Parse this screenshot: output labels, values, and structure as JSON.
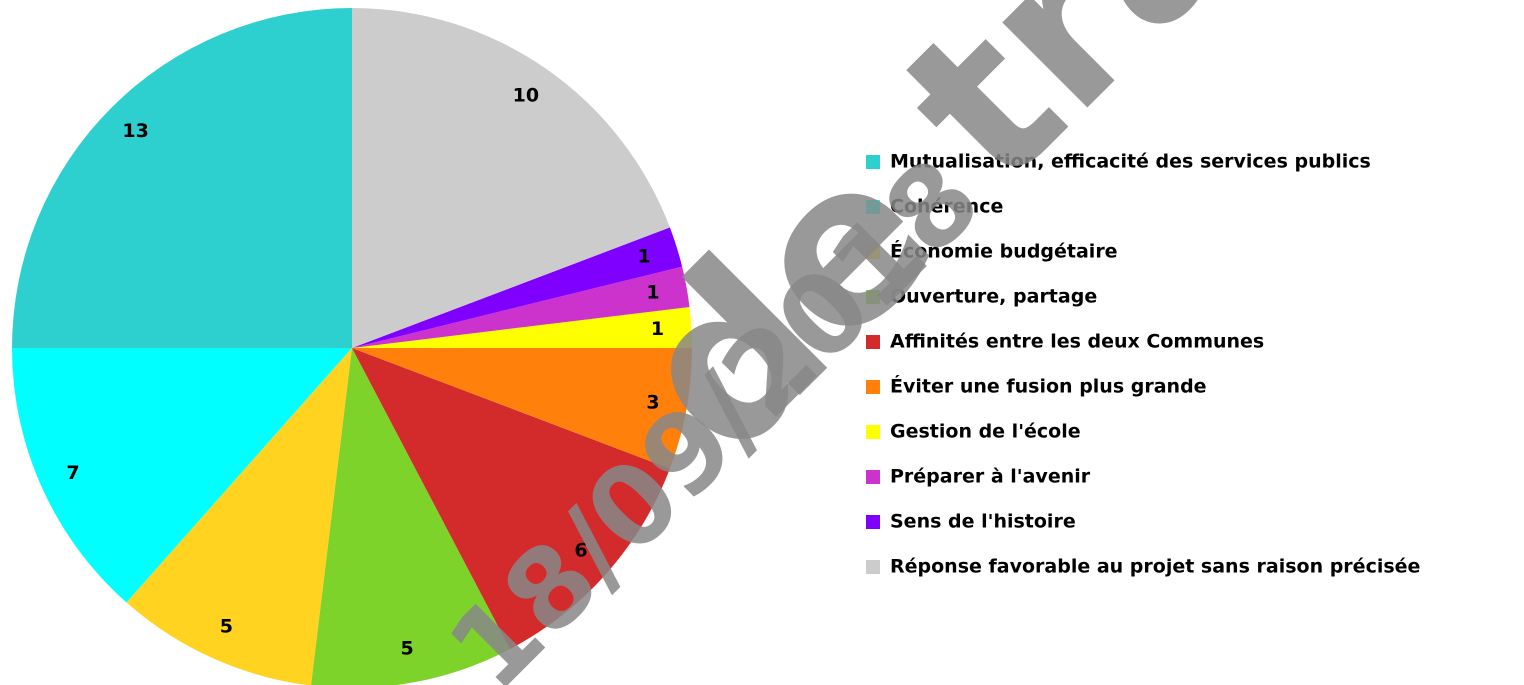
{
  "chart_data": {
    "type": "pie",
    "categories": [
      "Mutualisation, efficacité des services publics",
      "Cohérence",
      "Économie budgétaire",
      "Ouverture, partage",
      "Affinités entre les deux Communes",
      "Éviter une fusion plus grande",
      "Gestion de l'école",
      "Préparer à l'avenir",
      "Sens de l'histoire",
      "Réponse favorable au projet sans raison précisée"
    ],
    "values": [
      13,
      7,
      5,
      5,
      6,
      3,
      1,
      1,
      1,
      10
    ],
    "colors": [
      "#2ecfcf",
      "#00ffff",
      "#ffd320",
      "#7ed32a",
      "#d32b2b",
      "#ff800a",
      "#ffff00",
      "#cc33cc",
      "#8000ff",
      "#cccccc"
    ],
    "legend": "right"
  },
  "watermark": {
    "text": "de tra",
    "date": "18/09/2018"
  }
}
